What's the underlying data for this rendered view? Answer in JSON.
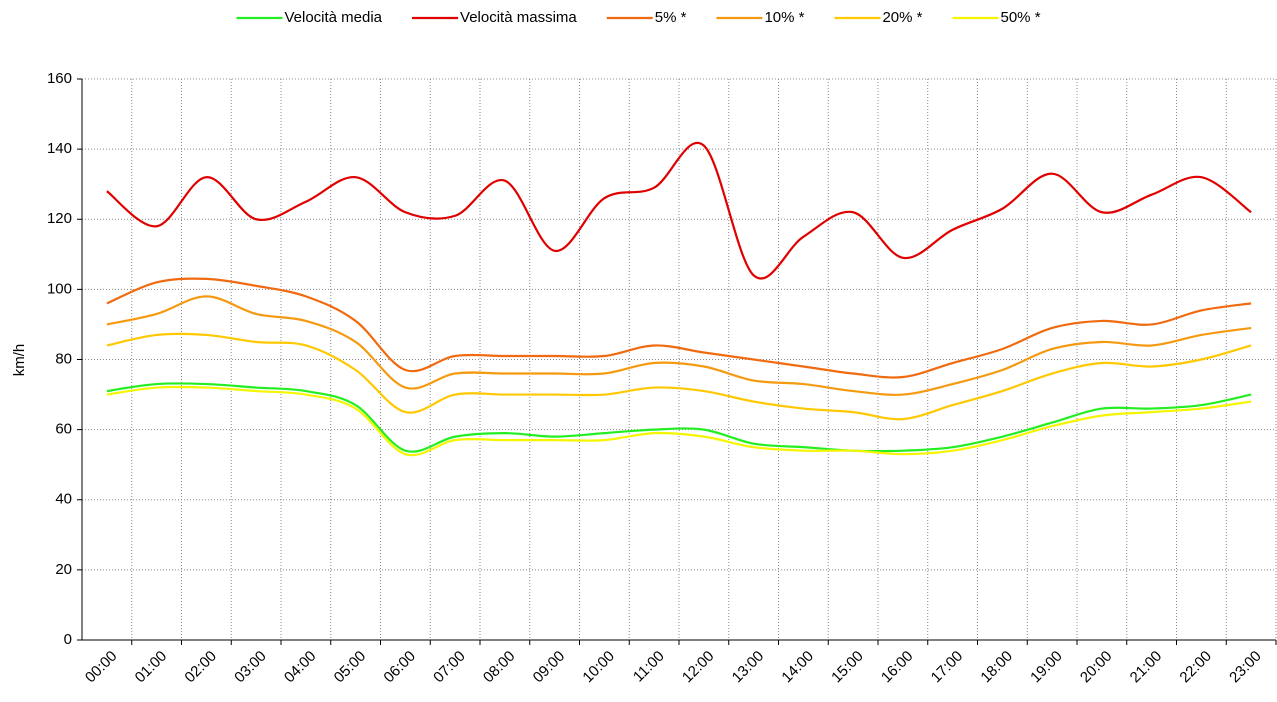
{
  "chart_data": {
    "type": "line",
    "y_label": "km/h",
    "categories": [
      "00:00",
      "01:00",
      "02:00",
      "03:00",
      "04:00",
      "05:00",
      "06:00",
      "07:00",
      "08:00",
      "09:00",
      "10:00",
      "11:00",
      "12:00",
      "13:00",
      "14:00",
      "15:00",
      "16:00",
      "17:00",
      "18:00",
      "19:00",
      "20:00",
      "21:00",
      "22:00",
      "23:00"
    ],
    "series": [
      {
        "name": "Velocità media",
        "color": "#22ee22",
        "values": [
          71,
          73,
          73,
          72,
          71,
          67,
          54,
          58,
          59,
          58,
          59,
          60,
          60,
          56,
          55,
          54,
          54,
          55,
          58,
          62,
          66,
          66,
          67,
          70
        ]
      },
      {
        "name": "Velocità massima",
        "color": "#e00000",
        "values": [
          128,
          118,
          132,
          120,
          125,
          132,
          122,
          121,
          131,
          111,
          126,
          129,
          141,
          104,
          115,
          122,
          109,
          117,
          123,
          133,
          122,
          127,
          132,
          122
        ]
      },
      {
        "name": "5% *",
        "color": "#f06a10",
        "values": [
          96,
          102,
          103,
          101,
          98,
          91,
          77,
          81,
          81,
          81,
          81,
          84,
          82,
          80,
          78,
          76,
          75,
          79,
          83,
          89,
          91,
          90,
          94,
          96
        ]
      },
      {
        "name": "10% *",
        "color": "#f59a10",
        "values": [
          90,
          93,
          98,
          93,
          91,
          85,
          72,
          76,
          76,
          76,
          76,
          79,
          78,
          74,
          73,
          71,
          70,
          73,
          77,
          83,
          85,
          84,
          87,
          89
        ]
      },
      {
        "name": "20% *",
        "color": "#ffc800",
        "values": [
          84,
          87,
          87,
          85,
          84,
          77,
          65,
          70,
          70,
          70,
          70,
          72,
          71,
          68,
          66,
          65,
          63,
          67,
          71,
          76,
          79,
          78,
          80,
          84
        ]
      },
      {
        "name": "50% *",
        "color": "#f5f500",
        "values": [
          70,
          72,
          72,
          71,
          70,
          66,
          53,
          57,
          57,
          57,
          57,
          59,
          58,
          55,
          54,
          54,
          53,
          54,
          57,
          61,
          64,
          65,
          66,
          68
        ]
      }
    ],
    "ylim": [
      0,
      160
    ],
    "yticks": [
      0,
      20,
      40,
      60,
      80,
      100,
      120,
      140,
      160
    ],
    "grid": true,
    "legend": "top"
  }
}
